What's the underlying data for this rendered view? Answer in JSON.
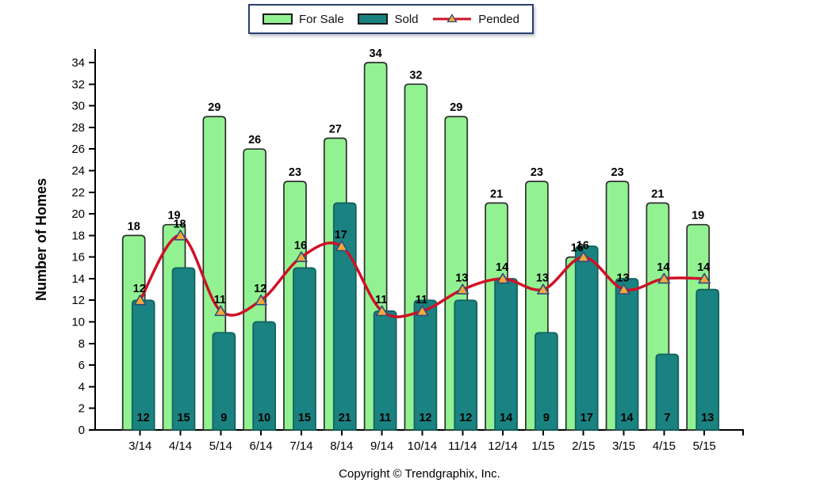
{
  "legend": {
    "items": [
      {
        "label": "For Sale",
        "type": "box"
      },
      {
        "label": "Sold",
        "type": "box"
      },
      {
        "label": "Pended",
        "type": "line"
      }
    ]
  },
  "chart_data": {
    "type": "bar",
    "title": "",
    "xlabel": "",
    "ylabel": "Number of Homes",
    "ylim": [
      0,
      34
    ],
    "ytick_step": 2,
    "grid": false,
    "legend_position": "top-center",
    "categories": [
      "3/14",
      "4/14",
      "5/14",
      "6/14",
      "7/14",
      "8/14",
      "9/14",
      "10/14",
      "11/14",
      "12/14",
      "1/15",
      "2/15",
      "3/15",
      "4/15",
      "5/15"
    ],
    "series": [
      {
        "name": "For Sale",
        "type": "bar",
        "values": [
          18,
          19,
          29,
          26,
          23,
          27,
          34,
          32,
          29,
          21,
          23,
          16,
          23,
          21,
          19
        ]
      },
      {
        "name": "Sold",
        "type": "bar",
        "values": [
          12,
          15,
          9,
          10,
          15,
          21,
          11,
          12,
          12,
          14,
          9,
          17,
          14,
          7,
          13
        ]
      },
      {
        "name": "Pended",
        "type": "line",
        "values": [
          12,
          18,
          11,
          12,
          16,
          17,
          11,
          11,
          13,
          14,
          13,
          16,
          13,
          14,
          14
        ]
      }
    ],
    "colors": {
      "for_sale_fill": "#92f292",
      "for_sale_border": "#2e2e2e",
      "sold_fill": "#1a8280",
      "sold_border": "#11605e",
      "pended_line": "#ce1126",
      "marker_fill": "#f4a83c",
      "marker_border": "#2f4b7c",
      "axis": "#000000",
      "label_text": "#000000"
    }
  },
  "footer": {
    "copyright": "Copyright © Trendgraphix, Inc."
  }
}
